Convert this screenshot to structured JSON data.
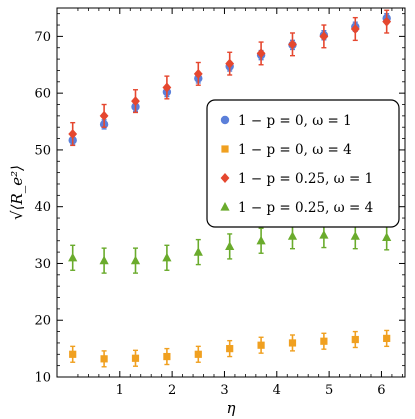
{
  "chart_data": {
    "type": "scatter",
    "title": "",
    "xlabel": "η",
    "ylabel": "√⟨R_e²⟩",
    "xlim": [
      -0.2,
      6.45
    ],
    "ylim": [
      10,
      75
    ],
    "x_ticks": [
      1,
      2,
      3,
      4,
      5,
      6
    ],
    "x_tick_labels": [
      "1",
      "2",
      "3",
      "4",
      "5",
      "6"
    ],
    "y_ticks": [
      10,
      20,
      30,
      40,
      50,
      60,
      70
    ],
    "y_tick_labels": [
      "10",
      "20",
      "30",
      "40",
      "50",
      "60",
      "70"
    ],
    "grid": false,
    "legend_position": "right",
    "x": [
      0.1,
      0.7,
      1.3,
      1.9,
      2.5,
      3.1,
      3.7,
      4.3,
      4.9,
      5.5,
      6.1
    ],
    "series": [
      {
        "name": "1 − p = 0, ω = 1",
        "marker": "circle",
        "color": "#5b7fd9",
        "y": [
          51.7,
          54.5,
          57.6,
          60.2,
          62.6,
          64.7,
          66.7,
          68.5,
          70.2,
          71.7,
          73.2
        ],
        "err": [
          0.8,
          0.8,
          0.8,
          0.8,
          0.8,
          0.8,
          0.8,
          0.8,
          0.8,
          0.8,
          0.8
        ]
      },
      {
        "name": "1 − p = 0, ω = 4",
        "marker": "square",
        "color": "#f0a020",
        "y": [
          14.0,
          13.2,
          13.3,
          13.6,
          14.0,
          15.0,
          15.6,
          16.0,
          16.3,
          16.6,
          16.8
        ],
        "err": [
          1.4,
          1.4,
          1.4,
          1.4,
          1.4,
          1.4,
          1.4,
          1.4,
          1.4,
          1.4,
          1.4
        ]
      },
      {
        "name": "1 − p = 0.25, ω = 1",
        "marker": "diamond",
        "color": "#e5472f",
        "y": [
          52.8,
          56.0,
          58.6,
          61.0,
          63.4,
          65.2,
          67.0,
          68.6,
          70.0,
          71.3,
          72.6
        ],
        "err": [
          2.0,
          2.0,
          2.0,
          2.0,
          2.0,
          2.0,
          2.0,
          2.0,
          2.0,
          2.0,
          2.0
        ]
      },
      {
        "name": "1 − p = 0.25, ω = 4",
        "marker": "triangle",
        "color": "#6aab2c",
        "y": [
          31.0,
          30.5,
          30.5,
          31.0,
          32.0,
          33.0,
          34.0,
          34.8,
          35.0,
          34.8,
          34.6
        ],
        "err": [
          2.2,
          2.2,
          2.2,
          2.2,
          2.2,
          2.2,
          2.2,
          2.2,
          2.2,
          2.2,
          2.2
        ]
      }
    ]
  }
}
